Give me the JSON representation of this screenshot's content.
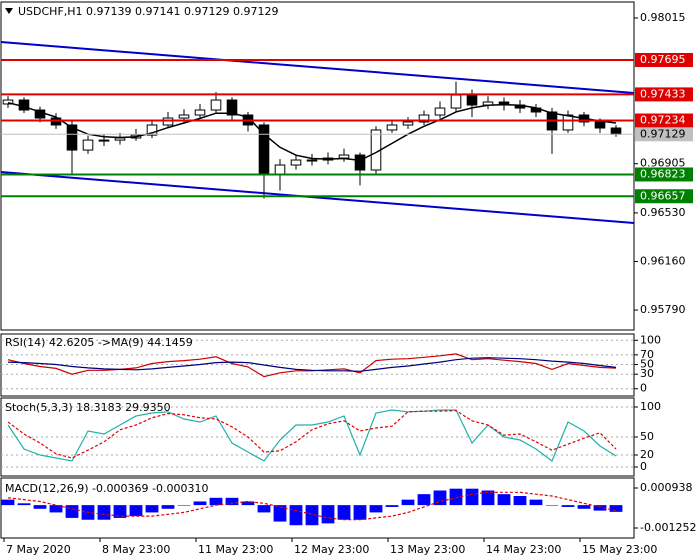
{
  "chart_data": [
    {
      "type": "candlestick",
      "title": "USDCHF,H1  0.97139 0.97141 0.97129 0.97129",
      "x": [
        1,
        5,
        9,
        13,
        17,
        21,
        25,
        29,
        33,
        37,
        41,
        45,
        49,
        53,
        57,
        61,
        65,
        69,
        73,
        77,
        81,
        85,
        89,
        93,
        97,
        101,
        105,
        109,
        113,
        117,
        121,
        125,
        129,
        133,
        137,
        141,
        145,
        149,
        153
      ],
      "open": [
        0.9736,
        0.9739,
        0.97314,
        0.97253,
        0.972,
        0.97009,
        0.97085,
        0.97085,
        0.97101,
        0.97123,
        0.972,
        0.97253,
        0.97276,
        0.97314,
        0.9739,
        0.97276,
        0.972,
        0.96819,
        0.96895,
        0.96933,
        0.96933,
        0.96948,
        0.96971,
        0.96857,
        0.97162,
        0.972,
        0.97223,
        0.97276,
        0.97329,
        0.97428,
        0.97352,
        0.97375,
        0.97352,
        0.97329,
        0.97299,
        0.97162,
        0.97276,
        0.97223,
        0.97177
      ],
      "high": [
        0.9742,
        0.9741,
        0.9734,
        0.9729,
        0.9723,
        0.9712,
        0.9713,
        0.9714,
        0.9717,
        0.9724,
        0.973,
        0.9732,
        0.9736,
        0.9745,
        0.9741,
        0.973,
        0.9722,
        0.9694,
        0.9697,
        0.9698,
        0.9699,
        0.9702,
        0.9699,
        0.9719,
        0.9724,
        0.9726,
        0.9731,
        0.9738,
        0.9753,
        0.9747,
        0.9742,
        0.9741,
        0.9739,
        0.9736,
        0.9733,
        0.9731,
        0.973,
        0.9725,
        0.972
      ],
      "low": [
        0.9733,
        0.9729,
        0.9722,
        0.9717,
        0.9683,
        0.9698,
        0.9704,
        0.9705,
        0.9708,
        0.971,
        0.9718,
        0.9722,
        0.9725,
        0.9729,
        0.9724,
        0.9715,
        0.9664,
        0.967,
        0.9686,
        0.9689,
        0.969,
        0.9692,
        0.9674,
        0.9683,
        0.9714,
        0.9717,
        0.972,
        0.9725,
        0.973,
        0.9726,
        0.9732,
        0.9731,
        0.9729,
        0.9726,
        0.9698,
        0.9714,
        0.9719,
        0.9714,
        0.9711
      ],
      "close": [
        0.9739,
        0.97314,
        0.97253,
        0.972,
        0.97009,
        0.97085,
        0.97085,
        0.97101,
        0.97123,
        0.972,
        0.97253,
        0.97276,
        0.97314,
        0.9739,
        0.97276,
        0.972,
        0.96819,
        0.96895,
        0.96933,
        0.96933,
        0.96948,
        0.96971,
        0.96857,
        0.97162,
        0.972,
        0.97223,
        0.97276,
        0.97329,
        0.97428,
        0.97352,
        0.97375,
        0.97352,
        0.97329,
        0.97299,
        0.97162,
        0.97276,
        0.97223,
        0.97177,
        0.97129
      ],
      "up_color": "#ffffff",
      "down_color": "#000000",
      "wick_color": "#000000",
      "ma": {
        "color": "#000000",
        "values": [
          0.9737,
          0.9734,
          0.973,
          0.9726,
          0.9718,
          0.9713,
          0.9711,
          0.97105,
          0.9711,
          0.9714,
          0.9718,
          0.97215,
          0.9725,
          0.9729,
          0.9729,
          0.9726,
          0.9713,
          0.9703,
          0.9697,
          0.96945,
          0.9694,
          0.96945,
          0.9693,
          0.9699,
          0.9706,
          0.9713,
          0.9719,
          0.9724,
          0.973,
          0.9733,
          0.9735,
          0.97355,
          0.9735,
          0.9733,
          0.9729,
          0.9727,
          0.9725,
          0.9723,
          0.97215
        ]
      },
      "channel": [
        {
          "color": "#0000cc",
          "x": [
            -0.75,
            157.5
          ],
          "y": [
            0.97832,
            0.97444
          ]
        },
        {
          "color": "#0000cc",
          "x": [
            -0.75,
            157.5
          ],
          "y": [
            0.96842,
            0.96453
          ]
        }
      ],
      "levels": [
        {
          "value": 0.97695,
          "color": "#e00000"
        },
        {
          "value": 0.97433,
          "color": "#e00000"
        },
        {
          "value": 0.97234,
          "color": "#e00000"
        },
        {
          "value": 0.96823,
          "color": "#008000"
        },
        {
          "value": 0.96657,
          "color": "#008000"
        }
      ],
      "current": {
        "value": 0.97129,
        "color": "#c0c0c0"
      },
      "ylim": [
        0.95638,
        0.98137
      ],
      "yticks": [
        0.98015,
        0.96905,
        {
          "value": 0.9653,
          "label": "0.96530"
        },
        {
          "value": 0.9616,
          "label": "0.96160"
        },
        {
          "value": 0.9579,
          "label": "0.95790"
        }
      ],
      "xlim": [
        -0.75,
        157.5
      ],
      "xticks": [
        {
          "value": 0,
          "label": "7 May 2020"
        },
        {
          "value": 24,
          "label": "8 May 23:00"
        },
        {
          "value": 48,
          "label": "11 May 23:00"
        },
        {
          "value": 72,
          "label": "12 May 23:00"
        },
        {
          "value": 96,
          "label": "13 May 23:00"
        },
        {
          "value": 120,
          "label": "14 May 23:00"
        },
        {
          "value": 144,
          "label": "15 May 23:00"
        }
      ]
    },
    {
      "type": "line",
      "title": "RSI(14) 42.6205 ->MA(9) 44.1459",
      "series": [
        {
          "color": "#cc0000",
          "values": [
            60,
            52,
            46,
            42,
            30,
            38,
            38,
            40,
            43,
            52,
            56,
            58,
            61,
            66,
            52,
            45,
            25,
            33,
            37,
            37,
            39,
            41,
            33,
            58,
            61,
            62,
            65,
            68,
            72,
            60,
            62,
            59,
            56,
            52,
            40,
            52,
            48,
            44,
            42.6205
          ]
        },
        {
          "color": "#000080",
          "values": [
            55,
            54,
            52,
            50,
            46,
            43,
            41,
            40,
            39,
            41,
            44,
            47,
            50,
            54,
            55,
            54,
            49,
            44,
            40,
            38,
            37,
            37,
            36,
            40,
            44,
            47,
            51,
            55,
            60,
            63,
            64,
            63,
            62,
            60,
            57,
            55,
            52,
            48,
            44.1459
          ]
        }
      ],
      "ylim": [
        -15,
        113
      ],
      "yticks": [
        100,
        70,
        50,
        30,
        0
      ]
    },
    {
      "type": "line",
      "title": "Stoch(5,3,3) 18.3183 29.9350",
      "series": [
        {
          "color": "#20b2aa",
          "values": [
            70,
            30,
            20,
            15,
            10,
            60,
            55,
            70,
            85,
            90,
            92,
            80,
            75,
            85,
            40,
            25,
            10,
            45,
            70,
            70,
            75,
            85,
            20,
            90,
            95,
            92,
            93,
            95,
            95,
            40,
            70,
            50,
            45,
            30,
            10,
            75,
            60,
            35,
            18.3183
          ]
        },
        {
          "color": "#e00000",
          "dash": true,
          "values": [
            75,
            55,
            40,
            22,
            15,
            28,
            42,
            62,
            70,
            82,
            89,
            87,
            82,
            80,
            67,
            50,
            25,
            27,
            42,
            62,
            72,
            77,
            60,
            65,
            68,
            92,
            93,
            93,
            94,
            77,
            70,
            53,
            55,
            42,
            28,
            38,
            48,
            57,
            29.935
          ]
        }
      ],
      "ylim": [
        -15,
        115
      ],
      "yticks": [
        100,
        50,
        20,
        0
      ]
    },
    {
      "type": "bar",
      "title": "MACD(12,26,9) -0.000369 -0.000310",
      "histogram": {
        "color": "#0000ff",
        "values": [
          0.0003,
          0.0001,
          -0.0002,
          -0.0004,
          -0.0007,
          -0.0008,
          -0.0008,
          -0.0007,
          -0.0006,
          -0.0004,
          -0.0002,
          0,
          0.0002,
          0.0004,
          0.0004,
          0.0002,
          -0.0004,
          -0.0009,
          -0.0011,
          -0.0011,
          -0.001,
          -0.0008,
          -0.0008,
          -0.0004,
          -0.0001,
          0.0003,
          0.0006,
          0.0008,
          0.0009,
          0.0009,
          0.0008,
          0.0006,
          0.0005,
          0.0003,
          0,
          -0.0001,
          -0.0002,
          -0.0003,
          -0.000369
        ]
      },
      "signal": {
        "color": "#e00000",
        "values": [
          0.0004,
          0.0003,
          0.0002,
          0,
          -0.0002,
          -0.0004,
          -0.0005,
          -0.0006,
          -0.0006,
          -0.0006,
          -0.0005,
          -0.0004,
          -0.0002,
          0,
          0.0001,
          0.0002,
          0.0001,
          -0.0001,
          -0.0003,
          -0.0005,
          -0.0007,
          -0.0008,
          -0.0008,
          -0.0007,
          -0.0006,
          -0.0004,
          -0.0001,
          0.0002,
          0.0004,
          0.0006,
          0.0007,
          0.0007,
          0.0007,
          0.0006,
          0.0005,
          0.0003,
          0.0001,
          -0.0001,
          -0.00031
        ]
      },
      "ylim": [
        -0.0018,
        0.001485
      ],
      "yticks": [
        0.000938,
        -0.001252
      ]
    }
  ]
}
